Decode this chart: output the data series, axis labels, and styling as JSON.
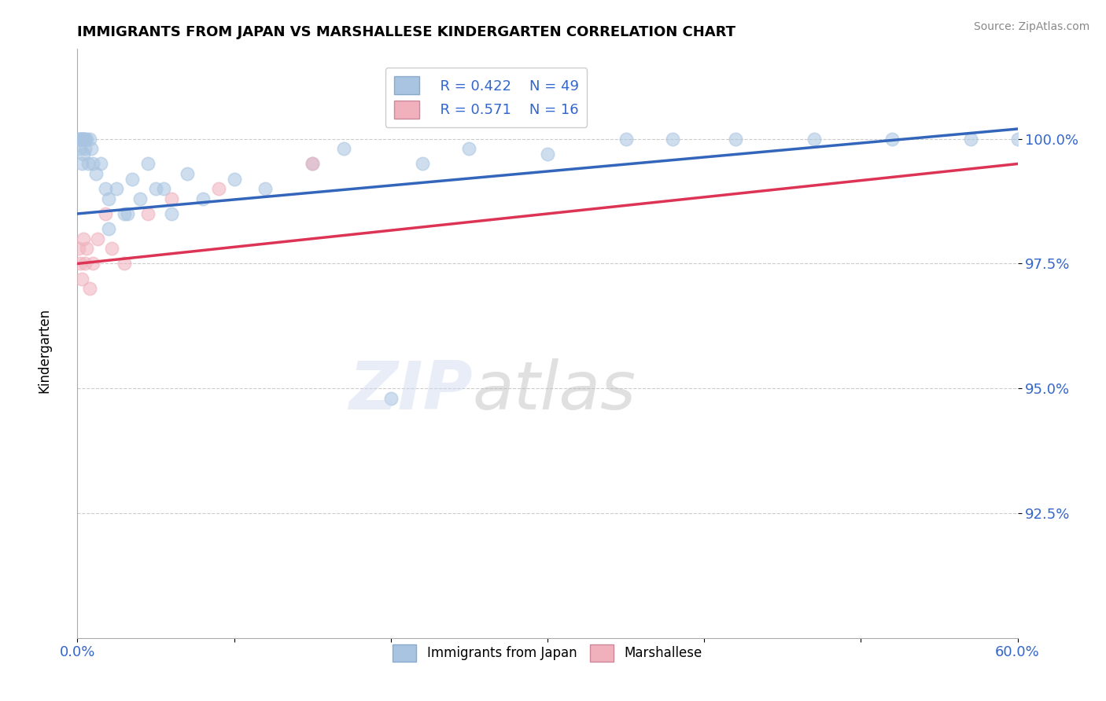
{
  "title": "IMMIGRANTS FROM JAPAN VS MARSHALLESE KINDERGARTEN CORRELATION CHART",
  "source_text": "Source: ZipAtlas.com",
  "ylabel": "Kindergarten",
  "xlim": [
    0.0,
    60.0
  ],
  "ylim": [
    90.0,
    101.8
  ],
  "yticks": [
    92.5,
    95.0,
    97.5,
    100.0
  ],
  "ytick_labels": [
    "92.5%",
    "95.0%",
    "97.5%",
    "100.0%"
  ],
  "xticks": [
    0.0,
    10.0,
    20.0,
    30.0,
    40.0,
    50.0,
    60.0
  ],
  "xtick_labels": [
    "0.0%",
    "",
    "",
    "",
    "",
    "",
    "60.0%"
  ],
  "legend_r1": "R = 0.422",
  "legend_n1": "N = 49",
  "legend_r2": "R = 0.571",
  "legend_n2": "N = 16",
  "blue_color": "#a8c4e0",
  "pink_color": "#f0b0bc",
  "blue_line_color": "#3366bb",
  "pink_line_color": "#dd3355",
  "japan_x": [
    0.1,
    0.15,
    0.2,
    0.2,
    0.25,
    0.3,
    0.3,
    0.35,
    0.4,
    0.4,
    0.45,
    0.5,
    0.5,
    0.6,
    0.7,
    0.8,
    0.9,
    1.0,
    1.2,
    1.5,
    1.8,
    2.0,
    2.5,
    3.0,
    3.5,
    4.0,
    4.5,
    5.0,
    6.0,
    7.0,
    8.0,
    10.0,
    12.0,
    15.0,
    17.0,
    20.0,
    22.0,
    25.0,
    30.0,
    35.0,
    38.0,
    42.0,
    47.0,
    52.0,
    57.0,
    60.0,
    2.0,
    3.2,
    5.5
  ],
  "japan_y": [
    100.0,
    100.0,
    100.0,
    99.8,
    100.0,
    100.0,
    99.5,
    100.0,
    100.0,
    99.7,
    100.0,
    99.8,
    100.0,
    100.0,
    99.5,
    100.0,
    99.8,
    99.5,
    99.3,
    99.5,
    99.0,
    98.8,
    99.0,
    98.5,
    99.2,
    98.8,
    99.5,
    99.0,
    98.5,
    99.3,
    98.8,
    99.2,
    99.0,
    99.5,
    99.8,
    94.8,
    99.5,
    99.8,
    99.7,
    100.0,
    100.0,
    100.0,
    100.0,
    100.0,
    100.0,
    100.0,
    98.2,
    98.5,
    99.0
  ],
  "marshallese_x": [
    0.1,
    0.2,
    0.3,
    0.4,
    0.5,
    0.6,
    0.8,
    1.0,
    1.3,
    1.8,
    2.2,
    3.0,
    4.5,
    6.0,
    9.0,
    15.0
  ],
  "marshallese_y": [
    97.8,
    97.5,
    97.2,
    98.0,
    97.5,
    97.8,
    97.0,
    97.5,
    98.0,
    98.5,
    97.8,
    97.5,
    98.5,
    98.8,
    99.0,
    99.5
  ],
  "reg_japan_x0": 0.0,
  "reg_japan_y0": 98.5,
  "reg_japan_x1": 60.0,
  "reg_japan_y1": 100.2,
  "reg_marsh_x0": 0.0,
  "reg_marsh_y0": 97.5,
  "reg_marsh_x1": 60.0,
  "reg_marsh_y1": 99.5
}
